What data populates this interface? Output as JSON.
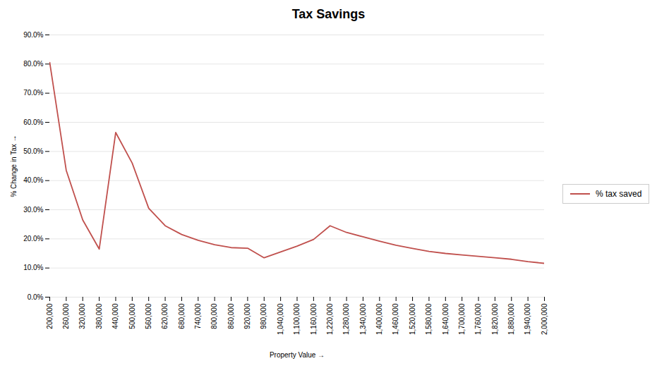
{
  "chart_data": {
    "type": "line",
    "title": "Tax Savings",
    "xlabel": "Property Value",
    "ylabel": "% Change in Tax",
    "x": [
      200000,
      260000,
      320000,
      380000,
      440000,
      500000,
      560000,
      620000,
      680000,
      740000,
      800000,
      860000,
      920000,
      980000,
      1040000,
      1100000,
      1160000,
      1220000,
      1280000,
      1340000,
      1400000,
      1460000,
      1520000,
      1580000,
      1640000,
      1700000,
      1760000,
      1820000,
      1880000,
      1940000,
      2000000
    ],
    "series": [
      {
        "name": "% tax saved",
        "color": "#c0504d",
        "values": [
          0.805,
          0.435,
          0.265,
          0.165,
          0.565,
          0.46,
          0.305,
          0.245,
          0.215,
          0.195,
          0.18,
          0.17,
          0.168,
          0.135,
          0.155,
          0.175,
          0.198,
          0.245,
          0.222,
          0.207,
          0.192,
          0.178,
          0.167,
          0.157,
          0.15,
          0.145,
          0.14,
          0.135,
          0.13,
          0.122,
          0.116
        ]
      }
    ],
    "xlim": [
      200000,
      2000000
    ],
    "xticks": [
      {
        "value": 200000,
        "label": "200,000"
      },
      {
        "value": 260000,
        "label": "260,000"
      },
      {
        "value": 320000,
        "label": "320,000"
      },
      {
        "value": 380000,
        "label": "380,000"
      },
      {
        "value": 440000,
        "label": "440,000"
      },
      {
        "value": 500000,
        "label": "500,000"
      },
      {
        "value": 560000,
        "label": "560,000"
      },
      {
        "value": 620000,
        "label": "620,000"
      },
      {
        "value": 680000,
        "label": "680,000"
      },
      {
        "value": 740000,
        "label": "740,000"
      },
      {
        "value": 800000,
        "label": "800,000"
      },
      {
        "value": 860000,
        "label": "860,000"
      },
      {
        "value": 920000,
        "label": "920,000"
      },
      {
        "value": 980000,
        "label": "980,000"
      },
      {
        "value": 1040000,
        "label": "1,040,000"
      },
      {
        "value": 1100000,
        "label": "1,100,000"
      },
      {
        "value": 1160000,
        "label": "1,160,000"
      },
      {
        "value": 1220000,
        "label": "1,220,000"
      },
      {
        "value": 1280000,
        "label": "1,280,000"
      },
      {
        "value": 1340000,
        "label": "1,340,000"
      },
      {
        "value": 1400000,
        "label": "1,400,000"
      },
      {
        "value": 1460000,
        "label": "1,460,000"
      },
      {
        "value": 1520000,
        "label": "1,520,000"
      },
      {
        "value": 1580000,
        "label": "1,580,000"
      },
      {
        "value": 1640000,
        "label": "1,640,000"
      },
      {
        "value": 1700000,
        "label": "1,700,000"
      },
      {
        "value": 1760000,
        "label": "1,760,000"
      },
      {
        "value": 1820000,
        "label": "1,820,000"
      },
      {
        "value": 1880000,
        "label": "1,880,000"
      },
      {
        "value": 1940000,
        "label": "1,940,000"
      },
      {
        "value": 2000000,
        "label": "2,000,000"
      }
    ],
    "ylim": [
      0.0,
      0.9
    ],
    "yticks": [
      {
        "value": 0.0,
        "label": "0.0%"
      },
      {
        "value": 0.1,
        "label": "10.0%"
      },
      {
        "value": 0.2,
        "label": "20.0%"
      },
      {
        "value": 0.3,
        "label": "30.0%"
      },
      {
        "value": 0.4,
        "label": "40.0%"
      },
      {
        "value": 0.5,
        "label": "50.0%"
      },
      {
        "value": 0.6,
        "label": "60.0%"
      },
      {
        "value": 0.7,
        "label": "70.0%"
      },
      {
        "value": 0.8,
        "label": "80.0%"
      },
      {
        "value": 0.9,
        "label": "90.0%"
      }
    ],
    "grid": true,
    "legend": "right"
  }
}
